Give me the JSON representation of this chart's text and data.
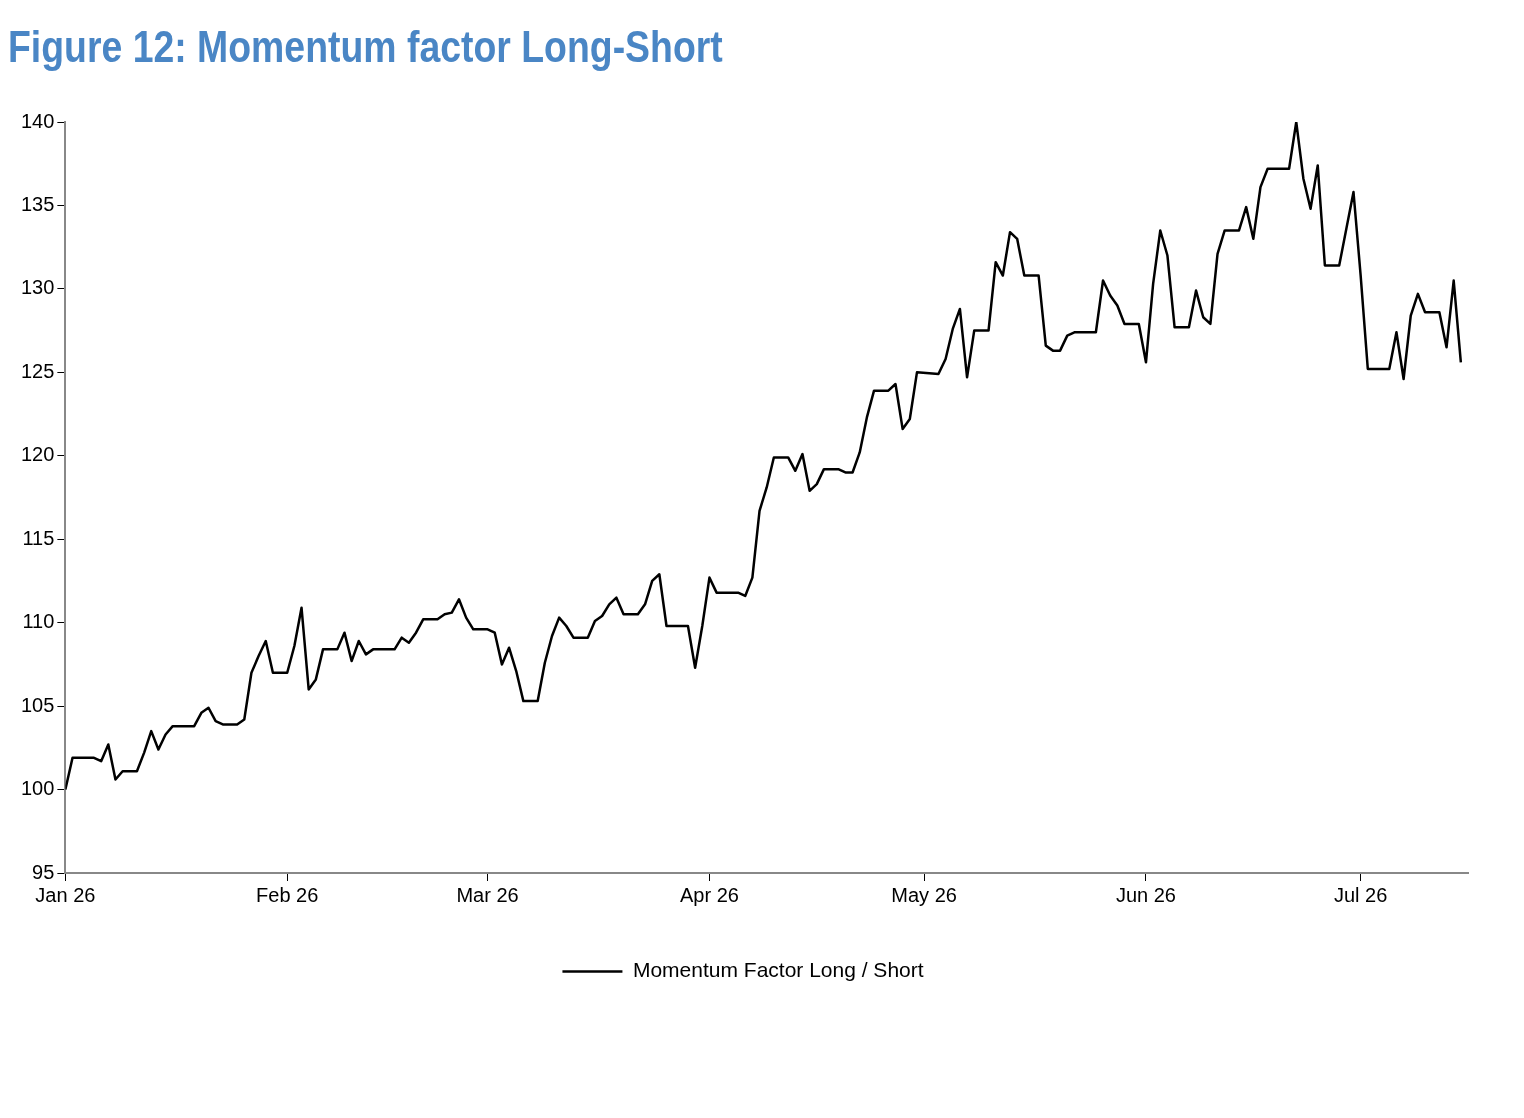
{
  "chart_data": {
    "type": "line",
    "title": "Figure 12: Momentum factor Long-Short",
    "legend": "bottom",
    "marker": "none",
    "line_style": "solid",
    "ylim": [
      95,
      140
    ],
    "yticks": [
      95,
      100,
      105,
      110,
      115,
      120,
      125,
      130,
      135,
      140
    ],
    "xlim": [
      "2026-01-01",
      "2026-07-16"
    ],
    "xticks": [
      {
        "value": "2026-01-01",
        "label": "Jan 26"
      },
      {
        "value": "2026-02-01",
        "label": "Feb 26"
      },
      {
        "value": "2026-03-01",
        "label": "Mar 26"
      },
      {
        "value": "2026-04-01",
        "label": "Apr 26"
      },
      {
        "value": "2026-05-01",
        "label": "May 26"
      },
      {
        "value": "2026-06-01",
        "label": "Jun 26"
      },
      {
        "value": "2026-07-01",
        "label": "Jul 26"
      }
    ],
    "x": [
      "2026-01-01",
      "2026-01-02",
      "2026-01-05",
      "2026-01-06",
      "2026-01-07",
      "2026-01-08",
      "2026-01-09",
      "2026-01-11",
      "2026-01-12",
      "2026-01-13",
      "2026-01-14",
      "2026-01-15",
      "2026-01-16",
      "2026-01-19",
      "2026-01-20",
      "2026-01-21",
      "2026-01-22",
      "2026-01-23",
      "2026-01-25",
      "2026-01-26",
      "2026-01-27",
      "2026-01-28",
      "2026-01-29",
      "2026-01-30",
      "2026-02-01",
      "2026-02-02",
      "2026-02-03",
      "2026-02-04",
      "2026-02-05",
      "2026-02-06",
      "2026-02-08",
      "2026-02-09",
      "2026-02-10",
      "2026-02-11",
      "2026-02-12",
      "2026-02-13",
      "2026-02-16",
      "2026-02-17",
      "2026-02-18",
      "2026-02-19",
      "2026-02-20",
      "2026-02-22",
      "2026-02-23",
      "2026-02-24",
      "2026-02-25",
      "2026-02-26",
      "2026-02-27",
      "2026-03-01",
      "2026-03-02",
      "2026-03-03",
      "2026-03-04",
      "2026-03-05",
      "2026-03-06",
      "2026-03-08",
      "2026-03-09",
      "2026-03-10",
      "2026-03-11",
      "2026-03-12",
      "2026-03-13",
      "2026-03-15",
      "2026-03-16",
      "2026-03-17",
      "2026-03-18",
      "2026-03-19",
      "2026-03-20",
      "2026-03-22",
      "2026-03-23",
      "2026-03-24",
      "2026-03-25",
      "2026-03-26",
      "2026-03-29",
      "2026-03-30",
      "2026-03-31",
      "2026-04-01",
      "2026-04-02",
      "2026-04-05",
      "2026-04-06",
      "2026-04-07",
      "2026-04-08",
      "2026-04-09",
      "2026-04-10",
      "2026-04-12",
      "2026-04-13",
      "2026-04-14",
      "2026-04-15",
      "2026-04-16",
      "2026-04-17",
      "2026-04-19",
      "2026-04-20",
      "2026-04-21",
      "2026-04-22",
      "2026-04-23",
      "2026-04-24",
      "2026-04-26",
      "2026-04-27",
      "2026-04-28",
      "2026-04-29",
      "2026-04-30",
      "2026-05-03",
      "2026-05-04",
      "2026-05-05",
      "2026-05-06",
      "2026-05-07",
      "2026-05-08",
      "2026-05-10",
      "2026-05-11",
      "2026-05-12",
      "2026-05-13",
      "2026-05-14",
      "2026-05-15",
      "2026-05-17",
      "2026-05-18",
      "2026-05-19",
      "2026-05-20",
      "2026-05-21",
      "2026-05-22",
      "2026-05-25",
      "2026-05-26",
      "2026-05-27",
      "2026-05-28",
      "2026-05-29",
      "2026-05-31",
      "2026-06-01",
      "2026-06-02",
      "2026-06-03",
      "2026-06-04",
      "2026-06-05",
      "2026-06-07",
      "2026-06-08",
      "2026-06-09",
      "2026-06-10",
      "2026-06-11",
      "2026-06-12",
      "2026-06-14",
      "2026-06-15",
      "2026-06-16",
      "2026-06-17",
      "2026-06-18",
      "2026-06-21",
      "2026-06-22",
      "2026-06-23",
      "2026-06-24",
      "2026-06-25",
      "2026-06-26",
      "2026-06-28",
      "2026-06-29",
      "2026-06-30",
      "2026-07-01",
      "2026-07-02",
      "2026-07-05",
      "2026-07-06",
      "2026-07-07",
      "2026-07-08",
      "2026-07-09",
      "2026-07-10",
      "2026-07-12",
      "2026-07-13",
      "2026-07-14",
      "2026-07-15"
    ],
    "series": [
      {
        "name": "Momentum Factor Long / Short",
        "color": "#000000",
        "values": [
          100,
          101.9,
          101.9,
          101.7,
          102.7,
          100.6,
          101.1,
          101.1,
          102.2,
          103.5,
          102.4,
          103.3,
          103.8,
          103.8,
          104.6,
          104.9,
          104.1,
          103.9,
          103.9,
          104.2,
          107,
          108,
          108.9,
          107,
          107,
          108.6,
          110.9,
          106,
          106.6,
          108.4,
          108.4,
          109.4,
          107.7,
          108.9,
          108.1,
          108.4,
          108.4,
          109.1,
          108.8,
          109.4,
          110.2,
          110.2,
          110.5,
          110.6,
          111.4,
          110.3,
          109.6,
          109.6,
          109.4,
          107.5,
          108.5,
          107.1,
          105.3,
          105.3,
          107.6,
          109.2,
          110.3,
          109.8,
          109.1,
          109.1,
          110.1,
          110.4,
          111.1,
          111.5,
          110.5,
          110.5,
          111.1,
          112.5,
          112.9,
          109.8,
          109.8,
          107.3,
          109.8,
          112.7,
          111.8,
          111.8,
          111.6,
          112.7,
          116.7,
          118.1,
          119.9,
          119.9,
          119.1,
          120.1,
          117.9,
          118.3,
          119.2,
          119.2,
          119,
          119,
          120.2,
          122.3,
          123.9,
          123.9,
          124.3,
          121.6,
          122.2,
          125,
          124.9,
          125.8,
          127.6,
          128.8,
          124.7,
          127.5,
          127.5,
          131.6,
          130.8,
          133.4,
          133,
          130.8,
          130.8,
          126.6,
          126.3,
          126.3,
          127.2,
          127.4,
          127.4,
          130.5,
          129.6,
          129,
          127.9,
          127.9,
          125.6,
          130.3,
          133.5,
          132,
          127.7,
          127.7,
          129.9,
          128.3,
          127.9,
          132.1,
          133.5,
          133.5,
          134.9,
          133,
          136.1,
          137.2,
          137.2,
          140,
          136.6,
          134.8,
          137.4,
          131.4,
          131.4,
          133.6,
          135.8,
          130.8,
          125.2,
          125.2,
          127.4,
          124.6,
          128.4,
          129.7,
          128.6,
          128.6,
          126.5,
          130.5,
          125.6
        ]
      }
    ]
  }
}
